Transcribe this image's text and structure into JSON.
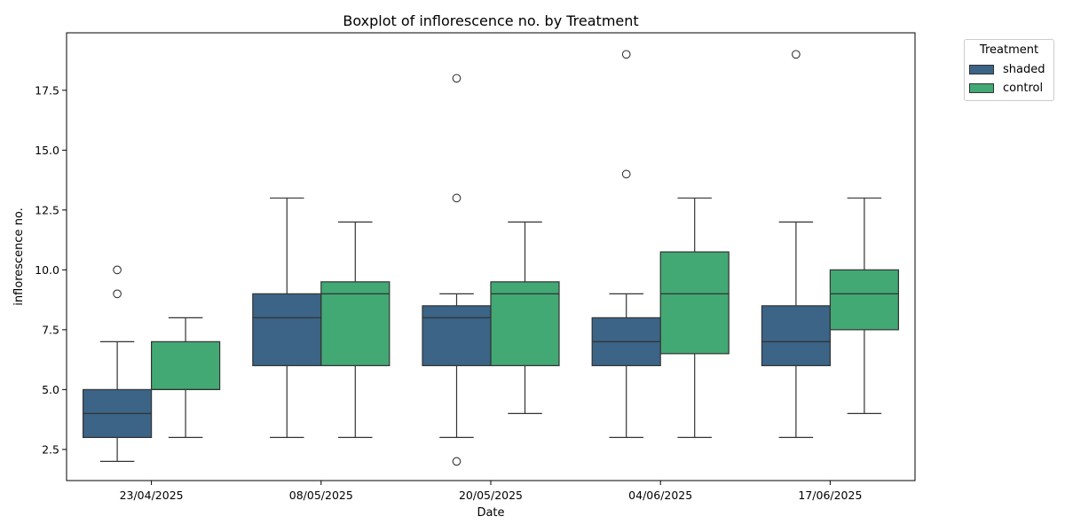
{
  "chart_data": {
    "type": "boxplot",
    "title": "Boxplot of inflorescence no. by Treatment",
    "xlabel": "Date",
    "ylabel": "inflorescence no.",
    "categories": [
      "23/04/2025",
      "08/05/2025",
      "20/05/2025",
      "04/06/2025",
      "17/06/2025"
    ],
    "ylim": [
      1.2,
      19.9
    ],
    "yticks": [
      2.5,
      5.0,
      7.5,
      10.0,
      12.5,
      15.0,
      17.5
    ],
    "ytick_labels": [
      "2.5",
      "5.0",
      "7.5",
      "10.0",
      "12.5",
      "15.0",
      "17.5"
    ],
    "grid": false,
    "legend": {
      "title": "Treatment",
      "placement": "outside-top-right",
      "entries": [
        "shaded",
        "control"
      ]
    },
    "series": [
      {
        "name": "shaded",
        "color": "#3b6486",
        "boxes": [
          {
            "whisker_low": 2,
            "q1": 3,
            "median": 4,
            "q3": 5,
            "whisker_high": 7,
            "outliers": [
              9,
              10
            ]
          },
          {
            "whisker_low": 3,
            "q1": 6,
            "median": 8,
            "q3": 9,
            "whisker_high": 13,
            "outliers": []
          },
          {
            "whisker_low": 3,
            "q1": 6,
            "median": 8,
            "q3": 8.5,
            "whisker_high": 9,
            "outliers": [
              2,
              13,
              18
            ]
          },
          {
            "whisker_low": 3,
            "q1": 6,
            "median": 7,
            "q3": 8,
            "whisker_high": 9,
            "outliers": [
              14,
              19
            ]
          },
          {
            "whisker_low": 3,
            "q1": 6,
            "median": 7,
            "q3": 8.5,
            "whisker_high": 12,
            "outliers": [
              19
            ]
          }
        ]
      },
      {
        "name": "control",
        "color": "#42a874",
        "boxes": [
          {
            "whisker_low": 3,
            "q1": 5,
            "median": 5,
            "q3": 7,
            "whisker_high": 8,
            "outliers": []
          },
          {
            "whisker_low": 3,
            "q1": 6,
            "median": 9,
            "q3": 9.5,
            "whisker_high": 12,
            "outliers": []
          },
          {
            "whisker_low": 4,
            "q1": 6,
            "median": 9,
            "q3": 9.5,
            "whisker_high": 12,
            "outliers": []
          },
          {
            "whisker_low": 3,
            "q1": 6.5,
            "median": 9,
            "q3": 10.75,
            "whisker_high": 13,
            "outliers": []
          },
          {
            "whisker_low": 4,
            "q1": 7.5,
            "median": 9,
            "q3": 10,
            "whisker_high": 13,
            "outliers": []
          }
        ]
      }
    ]
  }
}
